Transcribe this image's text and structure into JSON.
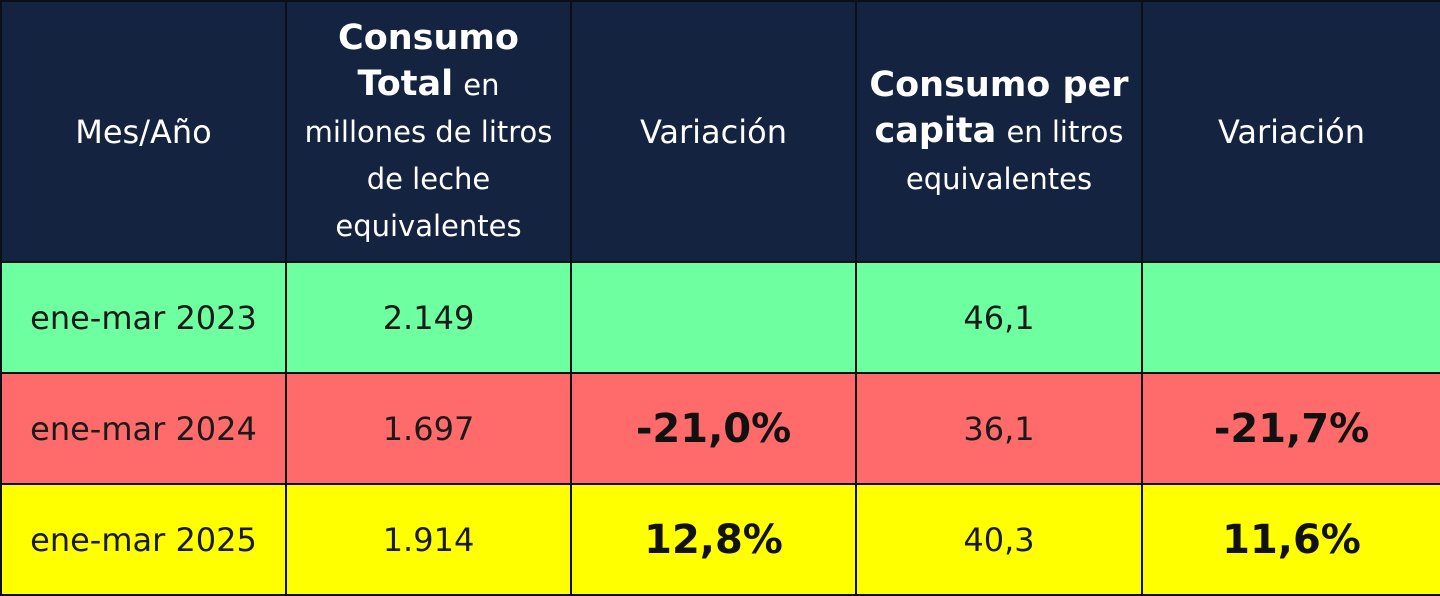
{
  "header": {
    "col1": "Mes/Año",
    "col2_bold_a": "Consumo",
    "col2_bold_b": "Total",
    "col2_rest_a": "en",
    "col2_rest_b": "millones de litros",
    "col2_rest_c": "de leche",
    "col2_rest_d": "equivalentes",
    "col3": "Variación",
    "col4_bold_a": "Consumo per",
    "col4_bold_b": "capita",
    "col4_rest_a": "en litros",
    "col4_rest_b": "equivalentes",
    "col5": "Variación"
  },
  "rows": [
    {
      "period": "ene-mar 2023",
      "total": "2.149",
      "total_var": "",
      "per_capita": "46,1",
      "per_capita_var": ""
    },
    {
      "period": "ene-mar 2024",
      "total": "1.697",
      "total_var": "-21,0%",
      "per_capita": "36,1",
      "per_capita_var": "-21,7%"
    },
    {
      "period": "ene-mar 2025",
      "total": "1.914",
      "total_var": "12,8%",
      "per_capita": "40,3",
      "per_capita_var": "11,6%"
    }
  ],
  "colors": {
    "header_bg": "#14233f",
    "row_2023": "#6effa0",
    "row_2024": "#ff6b6b",
    "row_2025": "#ffff00"
  }
}
